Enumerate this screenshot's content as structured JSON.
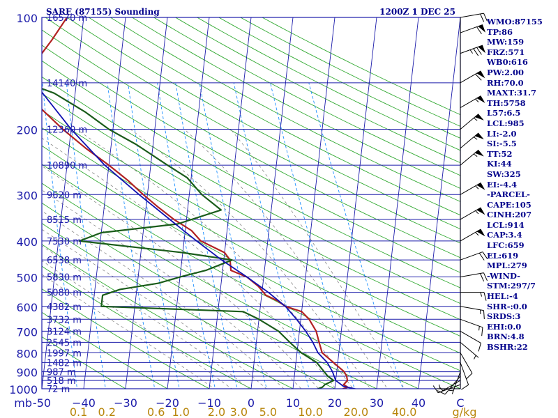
{
  "header": {
    "left_title": "SARE (87155) Sounding",
    "right_title": "1200Z  1 DEC 25"
  },
  "stats": [
    "WMO:87155",
    "TP:86",
    "MW:159",
    "FRZ:571",
    "WB0:616",
    "PW:2.00",
    "RH:70.0",
    "MAXT:31.7",
    "TH:5758",
    "L57:6.5",
    "LCL:985",
    "LI:-2.0",
    "SI:-5.5",
    "TT:52",
    "KI:44",
    "SW:325",
    "EI:-4.4",
    "-PARCEL-",
    "CAPE:105",
    "CINH:207",
    "LCL:914",
    "CAP:3.4",
    "LFC:659",
    "EL:619",
    "MPL:279",
    "-WIND-",
    "STM:297/7",
    "HEL:-4",
    "SHR-:0.0",
    "SRDS:3",
    "EHI:0.0",
    "BRN:4.8",
    "BSHR:22"
  ],
  "colors": {
    "axis": "#1c1caa",
    "isobar": "#1c1caa",
    "isotherm": "#1c1caa",
    "dry_adiabat": "#33aa33",
    "moist_adiabat": "#888888",
    "mixing_ratio": "#1e90ff",
    "temperature": "#b22222",
    "dewpoint": "#1a5c1a",
    "parcel": "#1010b0",
    "wind": "#000000",
    "height_label": "#1c1caa",
    "mixing_label": "#b8860b"
  },
  "chart_data": {
    "type": "skew-t",
    "title": "SARE (87155) Sounding",
    "time": "1200Z  1 DEC 25",
    "xlabel": "C",
    "units_label": "g/kg",
    "pressure_axis_label": "mb",
    "xlim": [
      -50,
      50
    ],
    "pressure_range": [
      100,
      1000
    ],
    "pressure_ticks": [
      100,
      200,
      300,
      400,
      500,
      600,
      700,
      800,
      900,
      1000
    ],
    "pressure_tick_labels": [
      "100",
      "200",
      "300",
      "400",
      "500",
      "600",
      "700",
      "800",
      "900",
      "1000"
    ],
    "temperature_ticks": [
      -50,
      -40,
      -30,
      -20,
      -10,
      0,
      10,
      20,
      30,
      40,
      50
    ],
    "temperature_tick_labels": [
      "-50",
      "−40",
      "−30",
      "−20",
      "−10",
      "0",
      "10",
      "20",
      "30",
      "40",
      "C"
    ],
    "mixing_ratio_values": [
      0.1,
      0.2,
      0.6,
      1.0,
      2.0,
      3.0,
      5.0,
      10.0,
      20.0,
      40.0
    ],
    "mixing_ratio_labels": [
      "0.1",
      "0.2",
      "0.6",
      "1.0",
      "2.0",
      "3.0",
      "5.0",
      "10.0",
      "20.0",
      "40.0"
    ],
    "height_labels": [
      {
        "p": 100,
        "text": "16570 m"
      },
      {
        "p": 150,
        "text": "14140 m"
      },
      {
        "p": 200,
        "text": "12360 m"
      },
      {
        "p": 250,
        "text": "10890 m"
      },
      {
        "p": 300,
        "text": "9620 m"
      },
      {
        "p": 350,
        "text": "8515 m"
      },
      {
        "p": 400,
        "text": "7530 m"
      },
      {
        "p": 450,
        "text": "6538 m"
      },
      {
        "p": 500,
        "text": "5830 m"
      },
      {
        "p": 550,
        "text": "5080 m"
      },
      {
        "p": 600,
        "text": "4382 m"
      },
      {
        "p": 650,
        "text": "3732 m"
      },
      {
        "p": 700,
        "text": "3124 m"
      },
      {
        "p": 750,
        "text": "2545 m"
      },
      {
        "p": 800,
        "text": "1997 m"
      },
      {
        "p": 850,
        "text": "1482 m"
      },
      {
        "p": 900,
        "text": "987 m"
      },
      {
        "p": 950,
        "text": "518 m"
      },
      {
        "p": 1000,
        "text": "72 m"
      }
    ],
    "isobars": [
      100,
      150,
      200,
      250,
      300,
      350,
      400,
      450,
      500,
      550,
      600,
      650,
      700,
      750,
      800,
      850,
      900,
      925,
      950,
      1000
    ],
    "series": [
      {
        "name": "temperature",
        "points": [
          [
            1010,
            21.5
          ],
          [
            1000,
            22
          ],
          [
            990,
            23
          ],
          [
            975,
            22
          ],
          [
            950,
            22.8
          ],
          [
            925,
            22.5
          ],
          [
            900,
            21.8
          ],
          [
            850,
            19
          ],
          [
            800,
            16
          ],
          [
            750,
            15
          ],
          [
            700,
            14
          ],
          [
            650,
            12
          ],
          [
            620,
            10
          ],
          [
            600,
            6
          ],
          [
            580,
            4
          ],
          [
            560,
            1
          ],
          [
            530,
            -1
          ],
          [
            500,
            -4
          ],
          [
            480,
            -8
          ],
          [
            450,
            -8.5
          ],
          [
            430,
            -10
          ],
          [
            400,
            -16
          ],
          [
            375,
            -18.5
          ],
          [
            350,
            -23
          ],
          [
            325,
            -27
          ],
          [
            300,
            -31
          ],
          [
            275,
            -35
          ],
          [
            250,
            -40
          ],
          [
            225,
            -46
          ],
          [
            200,
            -52
          ],
          [
            175,
            -58
          ],
          [
            160,
            -62
          ],
          [
            150,
            -64
          ],
          [
            142,
            -63.5
          ],
          [
            138,
            -60.5
          ],
          [
            130,
            -60
          ],
          [
            115,
            -57
          ],
          [
            100,
            -54
          ]
        ]
      },
      {
        "name": "dewpoint",
        "points": [
          [
            1010,
            16
          ],
          [
            1000,
            16
          ],
          [
            990,
            17
          ],
          [
            975,
            17.5
          ],
          [
            950,
            19.5
          ],
          [
            925,
            18
          ],
          [
            900,
            17
          ],
          [
            850,
            15
          ],
          [
            800,
            11
          ],
          [
            750,
            8
          ],
          [
            700,
            5
          ],
          [
            650,
            0
          ],
          [
            620,
            -4
          ],
          [
            600,
            -38
          ],
          [
            560,
            -38
          ],
          [
            540,
            -34
          ],
          [
            520,
            -25
          ],
          [
            500,
            -20
          ],
          [
            480,
            -14
          ],
          [
            450,
            -8
          ],
          [
            430,
            -20
          ],
          [
            400,
            -45
          ],
          [
            380,
            -40
          ],
          [
            360,
            -22
          ],
          [
            330,
            -12
          ],
          [
            300,
            -17
          ],
          [
            270,
            -21
          ],
          [
            250,
            -26
          ],
          [
            220,
            -34
          ],
          [
            200,
            -41
          ],
          [
            180,
            -47
          ],
          [
            160,
            -55
          ],
          [
            150,
            -62
          ],
          [
            145,
            -62
          ],
          [
            135,
            -70
          ],
          [
            125,
            -80
          ],
          [
            115,
            -78
          ],
          [
            100,
            -73
          ]
        ]
      },
      {
        "name": "parcel",
        "points": [
          [
            1010,
            26.5
          ],
          [
            985,
            22
          ],
          [
            950,
            20
          ],
          [
            900,
            19
          ],
          [
            850,
            17.5
          ],
          [
            800,
            15
          ],
          [
            750,
            13.5
          ],
          [
            700,
            11.5
          ],
          [
            650,
            9
          ],
          [
            600,
            6
          ],
          [
            550,
            1.5
          ],
          [
            500,
            -4
          ],
          [
            450,
            -10.5
          ],
          [
            400,
            -17
          ],
          [
            350,
            -24
          ],
          [
            300,
            -32
          ],
          [
            250,
            -41
          ],
          [
            200,
            -50
          ],
          [
            150,
            -60
          ],
          [
            100,
            -74
          ]
        ]
      }
    ],
    "wind_barbs": [
      {
        "p": 1000,
        "dir": 270,
        "kt": 5
      },
      {
        "p": 975,
        "dir": 250,
        "kt": 10
      },
      {
        "p": 950,
        "dir": 240,
        "kt": 5
      },
      {
        "p": 925,
        "dir": 220,
        "kt": 10
      },
      {
        "p": 900,
        "dir": 200,
        "kt": 5
      },
      {
        "p": 850,
        "dir": 160,
        "kt": 10
      },
      {
        "p": 800,
        "dir": 150,
        "kt": 10
      },
      {
        "p": 750,
        "dir": 130,
        "kt": 5
      },
      {
        "p": 700,
        "dir": 120,
        "kt": 10
      },
      {
        "p": 650,
        "dir": 110,
        "kt": 15
      },
      {
        "p": 600,
        "dir": 100,
        "kt": 15
      },
      {
        "p": 550,
        "dir": 90,
        "kt": 15
      },
      {
        "p": 500,
        "dir": 80,
        "kt": 20
      },
      {
        "p": 450,
        "dir": 70,
        "kt": 20
      },
      {
        "p": 400,
        "dir": 60,
        "kt": 55
      },
      {
        "p": 350,
        "dir": 60,
        "kt": 55
      },
      {
        "p": 300,
        "dir": 60,
        "kt": 55
      },
      {
        "p": 250,
        "dir": 50,
        "kt": 55
      },
      {
        "p": 225,
        "dir": 50,
        "kt": 55
      },
      {
        "p": 200,
        "dir": 50,
        "kt": 55
      },
      {
        "p": 175,
        "dir": 60,
        "kt": 55
      },
      {
        "p": 150,
        "dir": 60,
        "kt": 60
      },
      {
        "p": 125,
        "dir": 70,
        "kt": 75
      },
      {
        "p": 110,
        "dir": 70,
        "kt": 60
      },
      {
        "p": 100,
        "dir": 80,
        "kt": 20
      }
    ]
  }
}
